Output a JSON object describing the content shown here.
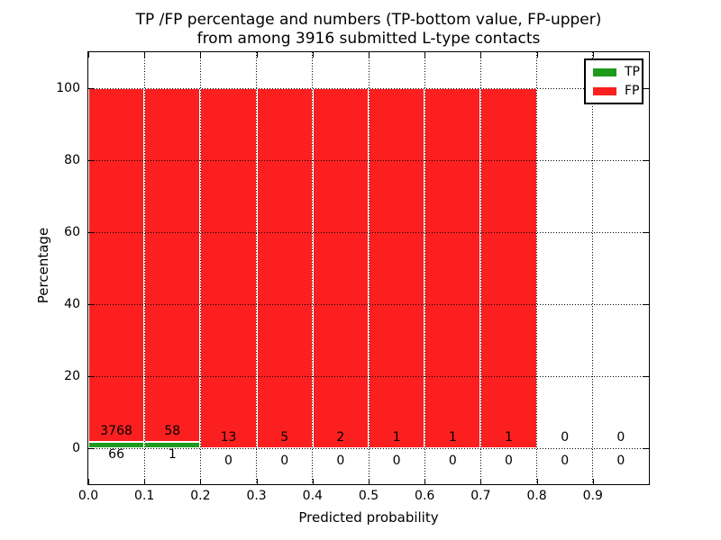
{
  "title": {
    "line1": "TP /FP percentage and numbers (TP-bottom value, FP-upper)",
    "line2": "from among 3916 submitted L-type contacts"
  },
  "legend": {
    "position": "upper right",
    "entries": [
      {
        "label": "TP",
        "color": "#1d9b1d"
      },
      {
        "label": "FP",
        "color": "#fb1f1f"
      }
    ]
  },
  "chart_data": {
    "type": "bar",
    "stacked": true,
    "title": "TP /FP percentage and numbers (TP-bottom value, FP-upper) from among 3916 submitted L-type contacts",
    "xlabel": "Predicted probability",
    "ylabel": "Percentage",
    "xlim": [
      0.0,
      1.0
    ],
    "ylim": [
      -10,
      110
    ],
    "grid": "dotted",
    "legend_position": "upper right",
    "bin_width": 0.1,
    "x": [
      0.0,
      0.1,
      0.2,
      0.3,
      0.4,
      0.5,
      0.6,
      0.7,
      0.8,
      0.9
    ],
    "xticks": [
      "0.0",
      "0.1",
      "0.2",
      "0.3",
      "0.4",
      "0.5",
      "0.6",
      "0.7",
      "0.8",
      "0.9"
    ],
    "yticks": [
      0,
      20,
      40,
      60,
      80,
      100
    ],
    "series": [
      {
        "name": "TP",
        "color": "#1d9b1d",
        "counts": [
          66,
          1,
          0,
          0,
          0,
          0,
          0,
          0,
          0,
          0
        ],
        "percent": [
          1.72,
          1.69,
          0,
          0,
          0,
          0,
          0,
          0,
          0,
          0
        ]
      },
      {
        "name": "FP",
        "color": "#fb1f1f",
        "counts": [
          3768,
          58,
          13,
          5,
          2,
          1,
          1,
          1,
          0,
          0
        ],
        "percent": [
          98.28,
          98.31,
          100,
          100,
          100,
          100,
          100,
          100,
          0,
          0
        ]
      }
    ]
  }
}
